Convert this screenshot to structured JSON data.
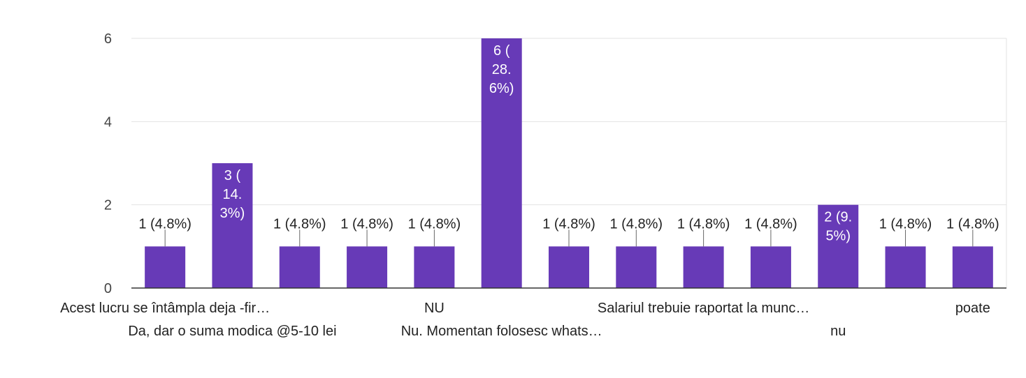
{
  "chart_data": {
    "type": "bar",
    "categories": [
      "Acest lucru se întâmpla deja -fir…",
      "Da, dar o suma modica @5-10 lei",
      "",
      "",
      "NU",
      "Nu. Momentan folosesc whats…",
      "",
      "",
      "Salariul trebuie raportat la munc…",
      "",
      "nu",
      "",
      "poate"
    ],
    "values": [
      1,
      3,
      1,
      1,
      1,
      6,
      1,
      1,
      1,
      1,
      2,
      1,
      1
    ],
    "data_labels": [
      [
        "1 (4.8%)"
      ],
      [
        "3 (",
        "14.",
        "3%)"
      ],
      [
        "1 (4.8%)"
      ],
      [
        "1 (4.8%)"
      ],
      [
        "1 (4.8%)"
      ],
      [
        "6 (",
        "28.",
        "6%)"
      ],
      [
        "1 (4.8%)"
      ],
      [
        "1 (4.8%)"
      ],
      [
        "1 (4.8%)"
      ],
      [
        "1 (4.8%)"
      ],
      [
        "2 (9.",
        "5%)"
      ],
      [
        "1 (4.8%)"
      ],
      [
        "1 (4.8%)"
      ]
    ],
    "label_inside": [
      false,
      true,
      false,
      false,
      false,
      true,
      false,
      false,
      false,
      false,
      true,
      false,
      false
    ],
    "category_row": [
      0,
      1,
      0,
      0,
      0,
      1,
      0,
      0,
      0,
      0,
      1,
      0,
      0
    ],
    "yticks": [
      "0",
      "2",
      "4",
      "6"
    ],
    "ylim": [
      0,
      6
    ],
    "grid": true,
    "bar_color": "#673ab7",
    "title": "",
    "xlabel": "",
    "ylabel": ""
  }
}
